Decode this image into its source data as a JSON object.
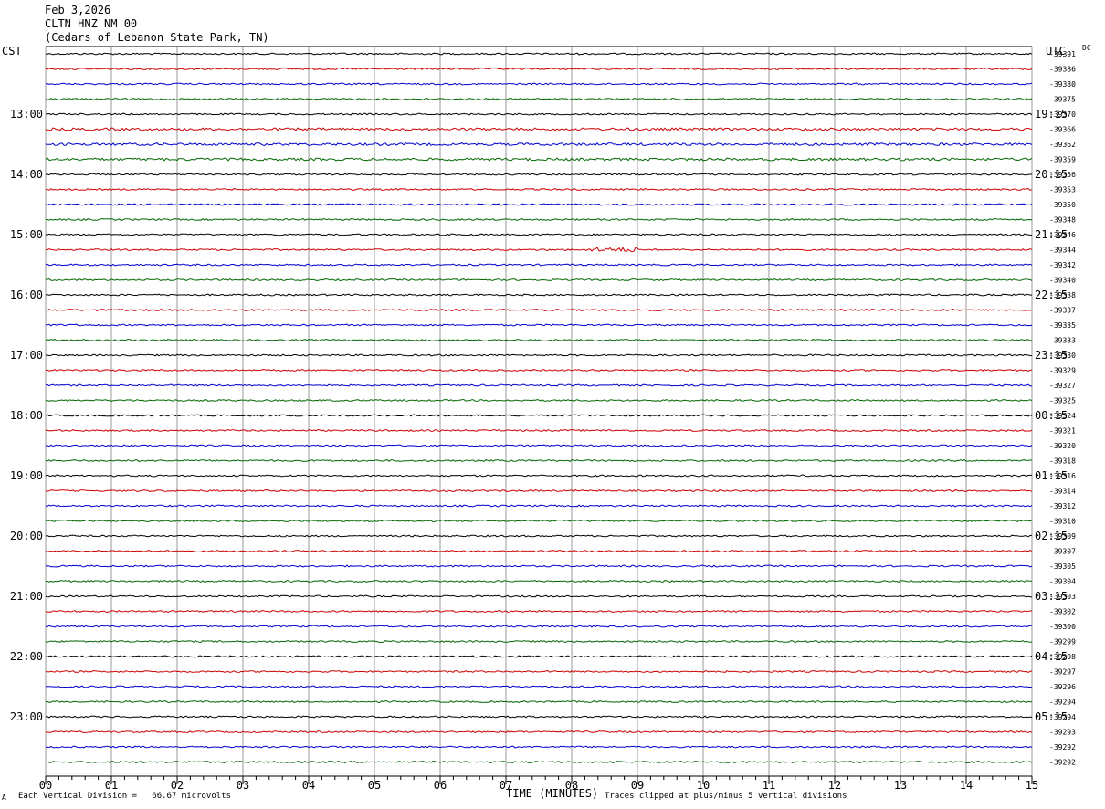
{
  "header": {
    "date": "Feb 3,2026",
    "station": "CLTN HNZ NM 00",
    "location": "(Cedars of Lebanon State Park, TN)"
  },
  "left_timezone": "CST",
  "right_timezone": "UTC",
  "dc_label": "DC",
  "footer": {
    "scale_note": "Each Vertical Division =   66.67 microvolts",
    "axis_title": "TIME (MINUTES)",
    "clip_note": "Traces clipped at plus/minus 5 vertical divisions",
    "corner_mark": "A"
  },
  "chart_data": {
    "type": "line",
    "title": "CLTN HNZ NM 00",
    "xlabel": "TIME (MINUTES)",
    "xlim": [
      0,
      15
    ],
    "x_ticks": [
      "00",
      "01",
      "02",
      "03",
      "04",
      "05",
      "06",
      "07",
      "08",
      "09",
      "10",
      "11",
      "12",
      "13",
      "14",
      "15"
    ],
    "trace_colors": [
      "#000000",
      "#cc0000",
      "#0000cc",
      "#006600"
    ],
    "left_hour_labels": [
      "13:00",
      "14:00",
      "15:00",
      "16:00",
      "17:00",
      "18:00",
      "19:00",
      "20:00",
      "21:00",
      "22:00",
      "23:00"
    ],
    "right_hour_labels": [
      "19:15",
      "20:15",
      "21:15",
      "22:15",
      "23:15",
      "00:15",
      "01:15",
      "02:15",
      "03:15",
      "04:15",
      "05:15"
    ],
    "hour_label_first_row": 4,
    "rows_per_hour": 4,
    "row_count": 48,
    "dc_offsets": [
      "-39391",
      "-39386",
      "-39380",
      "-39375",
      "-39370",
      "-39366",
      "-39362",
      "-39359",
      "-39356",
      "-39353",
      "-39350",
      "-39348",
      "-39346",
      "-39344",
      "-39342",
      "-39340",
      "-39338",
      "-39337",
      "-39335",
      "-39333",
      "-39330",
      "-39329",
      "-39327",
      "-39325",
      "-39324",
      "-39321",
      "-39320",
      "-39318",
      "-39316",
      "-39314",
      "-39312",
      "-39310",
      "-39309",
      "-39307",
      "-39305",
      "-39304",
      "-39303",
      "-39302",
      "-39300",
      "-39299",
      "-39298",
      "-39297",
      "-39296",
      "-39294",
      "-39294",
      "-39293",
      "-39292",
      "-39292"
    ]
  }
}
